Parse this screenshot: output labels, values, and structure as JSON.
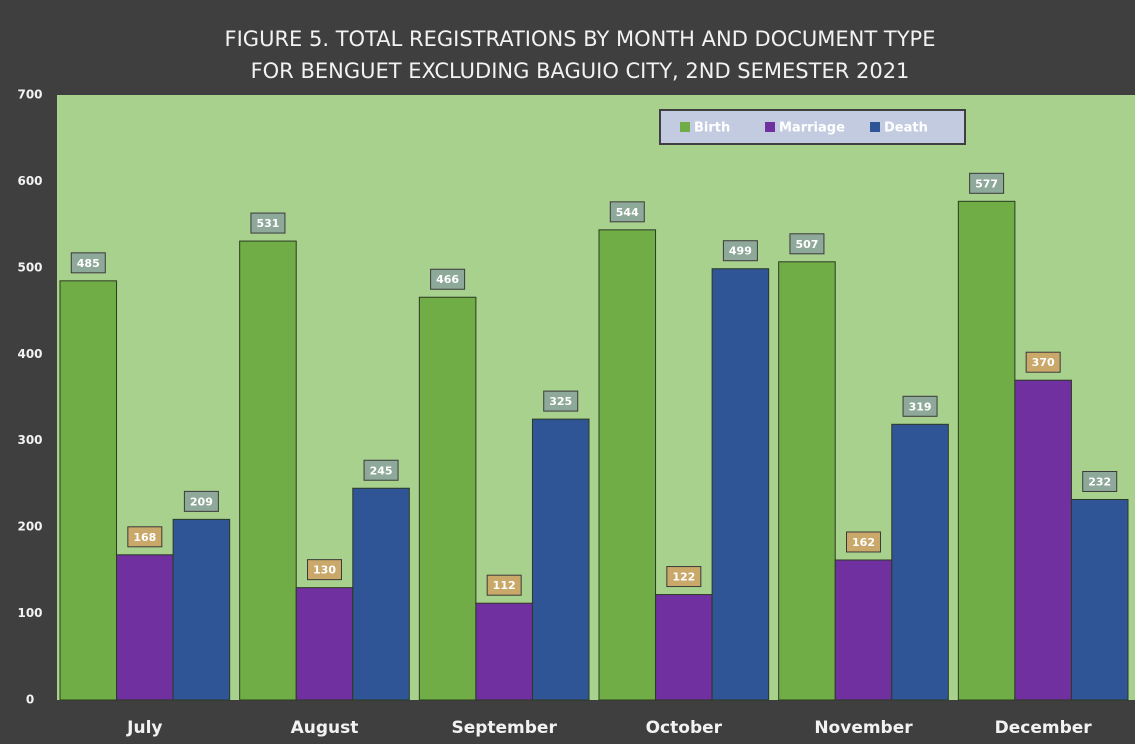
{
  "chart_data": {
    "type": "bar",
    "title": "FIGURE 5. TOTAL REGISTRATIONS BY MONTH AND DOCUMENT TYPE",
    "subtitle": "FOR BENGUET EXCLUDING BAGUIO CITY, 2ND SEMESTER 2021",
    "categories": [
      "July",
      "August",
      "September",
      "October",
      "November",
      "December"
    ],
    "series": [
      {
        "name": "Birth",
        "color": "#70ad47",
        "values": [
          485,
          531,
          466,
          544,
          507,
          577
        ]
      },
      {
        "name": "Marriage",
        "color": "#7030a0",
        "values": [
          168,
          130,
          112,
          122,
          162,
          370
        ]
      },
      {
        "name": "Death",
        "color": "#2f5597",
        "values": [
          209,
          245,
          325,
          499,
          319,
          232
        ]
      }
    ],
    "ylim": [
      0,
      700
    ],
    "yticks": [
      0,
      100,
      200,
      300,
      400,
      500,
      600,
      700
    ],
    "legend": "top-right",
    "plot_background": "#a9d18e"
  }
}
